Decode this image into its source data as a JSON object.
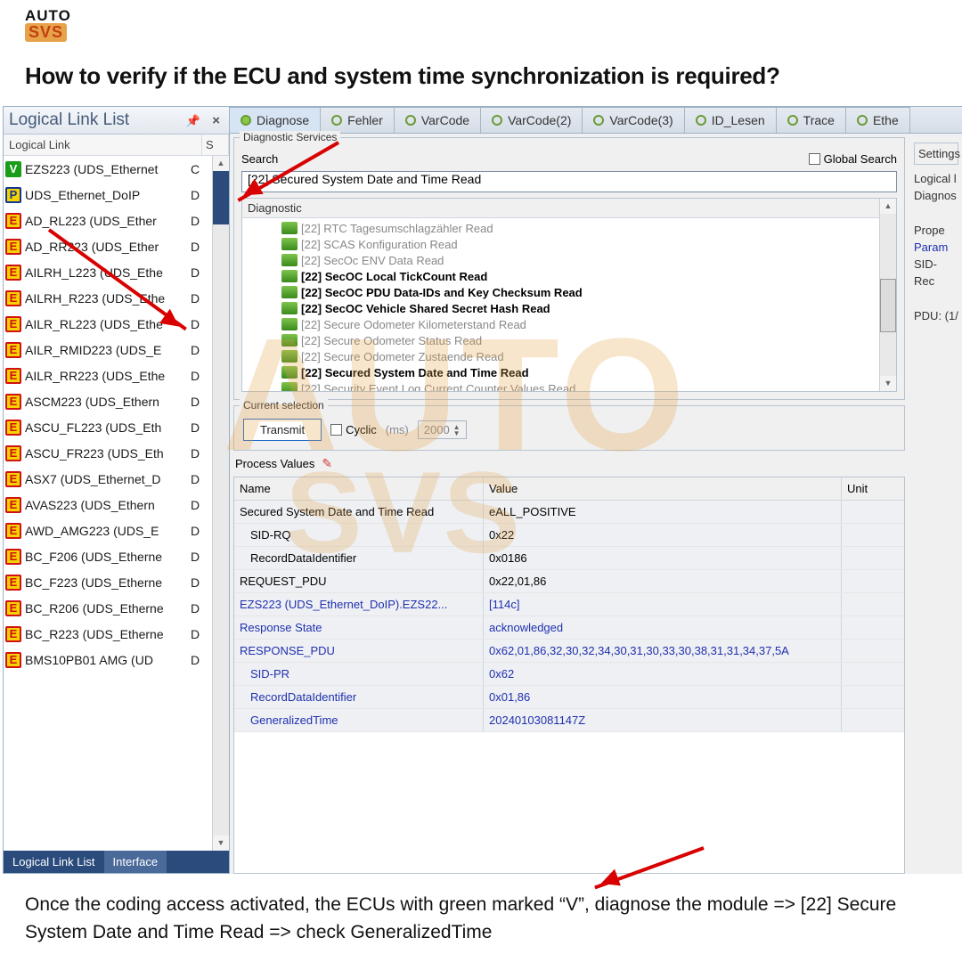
{
  "logo": {
    "top": "AUTO",
    "bot": "SVS"
  },
  "headline": "How to verify if the ECU and system time synchronization is required?",
  "watermark": {
    "line1": "AUTO",
    "line2": "SVS"
  },
  "left_panel": {
    "title": "Logical Link List",
    "col1": "Logical Link",
    "col2": "S",
    "items": [
      {
        "tag": "v",
        "txt": "EZS223 (UDS_Ethernet",
        "st": "C"
      },
      {
        "tag": "p",
        "txt": "UDS_Ethernet_DoIP",
        "st": "D"
      },
      {
        "tag": "e",
        "txt": "AD_RL223 (UDS_Ether",
        "st": "D"
      },
      {
        "tag": "e",
        "txt": "AD_RR223 (UDS_Ether",
        "st": "D"
      },
      {
        "tag": "e",
        "txt": "AILRH_L223 (UDS_Ethe",
        "st": "D"
      },
      {
        "tag": "e",
        "txt": "AILRH_R223 (UDS_Ethe",
        "st": "D"
      },
      {
        "tag": "e",
        "txt": "AILR_RL223 (UDS_Ethe",
        "st": "D"
      },
      {
        "tag": "e",
        "txt": "AILR_RMID223 (UDS_E",
        "st": "D"
      },
      {
        "tag": "e",
        "txt": "AILR_RR223 (UDS_Ethe",
        "st": "D"
      },
      {
        "tag": "e",
        "txt": "ASCM223 (UDS_Ethern",
        "st": "D"
      },
      {
        "tag": "e",
        "txt": "ASCU_FL223 (UDS_Eth",
        "st": "D"
      },
      {
        "tag": "e",
        "txt": "ASCU_FR223 (UDS_Eth",
        "st": "D"
      },
      {
        "tag": "e",
        "txt": "ASX7 (UDS_Ethernet_D",
        "st": "D"
      },
      {
        "tag": "e",
        "txt": "AVAS223 (UDS_Ethern",
        "st": "D"
      },
      {
        "tag": "e",
        "txt": "AWD_AMG223 (UDS_E",
        "st": "D"
      },
      {
        "tag": "e",
        "txt": "BC_F206 (UDS_Etherne",
        "st": "D"
      },
      {
        "tag": "e",
        "txt": "BC_F223 (UDS_Etherne",
        "st": "D"
      },
      {
        "tag": "e",
        "txt": "BC_R206 (UDS_Etherne",
        "st": "D"
      },
      {
        "tag": "e",
        "txt": "BC_R223 (UDS_Etherne",
        "st": "D"
      },
      {
        "tag": "e",
        "txt": "BMS10PB01 AMG (UD",
        "st": "D"
      }
    ],
    "bottom_tabs": {
      "active": "Logical Link List",
      "inactive": "Interface"
    }
  },
  "tabs": [
    "Diagnose",
    "Fehler",
    "VarCode",
    "VarCode(2)",
    "VarCode(3)",
    "ID_Lesen",
    "Trace",
    "Ethe"
  ],
  "diag_services": {
    "legend": "Diagnostic Services",
    "search_label": "Search",
    "global_search": "Global Search",
    "search_value": "[22] Secured System Date and Time Read"
  },
  "tree": {
    "header": "Diagnostic",
    "items": [
      {
        "label": "[22] RTC Tagesumschlagzähler Read",
        "bold": false
      },
      {
        "label": "[22] SCAS Konfiguration Read",
        "bold": false
      },
      {
        "label": "[22] SecOc ENV Data Read",
        "bold": false
      },
      {
        "label": "[22] SecOC Local TickCount Read",
        "bold": true
      },
      {
        "label": "[22] SecOC PDU Data-IDs and Key Checksum Read",
        "bold": true
      },
      {
        "label": "[22] SecOC Vehicle Shared Secret Hash Read",
        "bold": true
      },
      {
        "label": "[22] Secure Odometer Kilometerstand Read",
        "bold": false
      },
      {
        "label": "[22] Secure Odometer Status Read",
        "bold": false
      },
      {
        "label": "[22] Secure Odometer Zustaende Read",
        "bold": false
      },
      {
        "label": "[22] Secured System Date and Time Read",
        "bold": true
      },
      {
        "label": "[22] Security Event Log Current Counter Values Read",
        "bold": false
      }
    ]
  },
  "current_selection": {
    "legend": "Current selection",
    "transmit": "Transmit",
    "cyclic": "Cyclic",
    "ms": "(ms)",
    "ms_val": "2000"
  },
  "process_values": {
    "legend": "Process Values",
    "cols": {
      "name": "Name",
      "value": "Value",
      "unit": "Unit"
    },
    "rows": [
      {
        "name": "Secured System Date and Time Read",
        "value": "eALL_POSITIVE",
        "blue": false,
        "indent": false
      },
      {
        "name": "SID-RQ",
        "value": "0x22",
        "blue": false,
        "indent": true
      },
      {
        "name": "RecordDataIdentifier",
        "value": "0x0186",
        "blue": false,
        "indent": true
      },
      {
        "name": "REQUEST_PDU",
        "value": "0x22,01,86",
        "blue": false,
        "indent": false
      },
      {
        "name": "EZS223 (UDS_Ethernet_DoIP).EZS22...",
        "value": "[114c]",
        "blue": true,
        "indent": false
      },
      {
        "name": "Response State",
        "value": "acknowledged",
        "blue": true,
        "indent": false
      },
      {
        "name": "RESPONSE_PDU",
        "value": "0x62,01,86,32,30,32,34,30,31,30,33,30,38,31,31,34,37,5A",
        "blue": true,
        "indent": false
      },
      {
        "name": "SID-PR",
        "value": "0x62",
        "blue": true,
        "indent": true
      },
      {
        "name": "RecordDataIdentifier",
        "value": "0x01,86",
        "blue": true,
        "indent": true
      },
      {
        "name": "GeneralizedTime",
        "value": "20240103081147Z",
        "blue": true,
        "indent": true
      }
    ]
  },
  "side_right": {
    "settings": "Settings",
    "logical": "Logical l",
    "diagnos": "Diagnos",
    "prope": "Prope",
    "param": "Param",
    "sid": "SID-",
    "rec": "Rec",
    "pdu": "PDU: (1/"
  },
  "footer": "Once the coding access activated, the ECUs with green marked “V”, diagnose the module => [22] Secure System Date and Time Read => check GeneralizedTime"
}
